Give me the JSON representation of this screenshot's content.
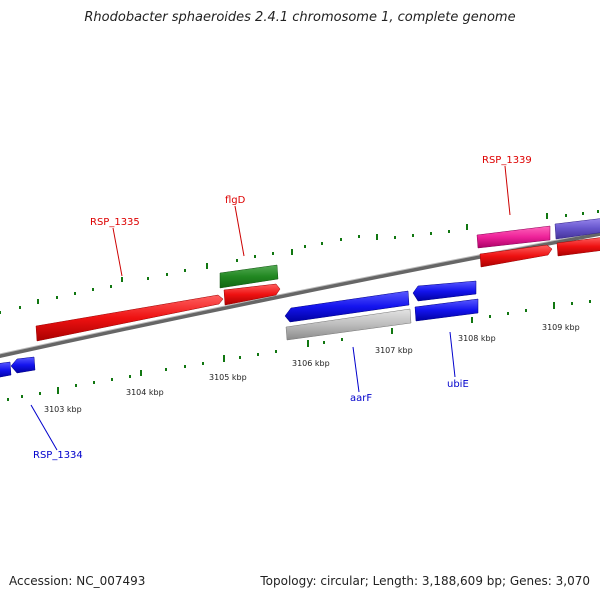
{
  "title": "Rhodobacter sphaeroides 2.4.1 chromosome 1, complete genome",
  "footer": {
    "accession": "Accession: NC_007493",
    "summary": "Topology: circular; Length: 3,188,609 bp; Genes: 3,070"
  },
  "ticks": [
    {
      "label": "3103 kbp"
    },
    {
      "label": "3104 kbp"
    },
    {
      "label": "3105 kbp"
    },
    {
      "label": "3106 kbp"
    },
    {
      "label": "3107 kbp"
    },
    {
      "label": "3108 kbp"
    },
    {
      "label": "3109 kbp"
    }
  ],
  "genes": [
    {
      "name": "RSP_1335",
      "color": "#dd0000"
    },
    {
      "name": "flgD",
      "color": "#dd0000"
    },
    {
      "name": "RSP_1339",
      "color": "#dd0000"
    },
    {
      "name": "aarF",
      "color": "#0000cc"
    },
    {
      "name": "ubiE",
      "color": "#0000cc"
    },
    {
      "name": "RSP_1334",
      "color": "#0000cc"
    }
  ],
  "colors": {
    "forward_gene": "#ee1111",
    "reverse_gene": "#1111ee",
    "green_gene": "#228822",
    "magenta_gene": "#ee2299",
    "purple_gene": "#6655cc",
    "gray_gene": "#bbbbbb",
    "backbone": "#777777",
    "tick": "#117711"
  }
}
